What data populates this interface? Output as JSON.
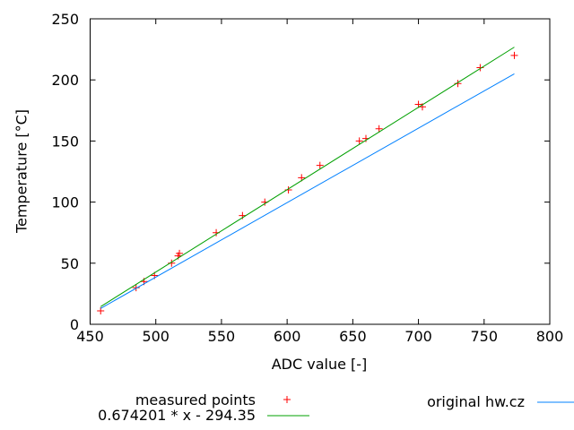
{
  "chart_data": {
    "type": "scatter",
    "title": "",
    "xlabel": "ADC value [-]",
    "ylabel": "Temperature [°C]",
    "xlim": [
      450,
      800
    ],
    "ylim": [
      0,
      250
    ],
    "xticks": [
      450,
      500,
      550,
      600,
      650,
      700,
      750,
      800
    ],
    "yticks": [
      0,
      50,
      100,
      150,
      200,
      250
    ],
    "grid": false,
    "legend_position": "below-plot",
    "axis_color": "#000000",
    "text_color": "#000000",
    "background_color": "#ffffff",
    "series": [
      {
        "name": "measured points",
        "type": "points",
        "marker": "plus",
        "color": "#ff0000",
        "points": [
          [
            458,
            11
          ],
          [
            485,
            30
          ],
          [
            491,
            35
          ],
          [
            499,
            40
          ],
          [
            512,
            50
          ],
          [
            517,
            56
          ],
          [
            518,
            58
          ],
          [
            546,
            75
          ],
          [
            566,
            89
          ],
          [
            583,
            100
          ],
          [
            601,
            110
          ],
          [
            611,
            120
          ],
          [
            625,
            130
          ],
          [
            655,
            150
          ],
          [
            660,
            152
          ],
          [
            670,
            160
          ],
          [
            700,
            180
          ],
          [
            703,
            178
          ],
          [
            730,
            197
          ],
          [
            747,
            210
          ],
          [
            773,
            220
          ]
        ]
      },
      {
        "name": "0.674201 * x - 294.35",
        "type": "line",
        "color": "#00a000",
        "slope": 0.674201,
        "intercept": -294.35,
        "x_range": [
          458,
          773
        ]
      },
      {
        "name": "original hw.cz",
        "type": "line",
        "color": "#0080ff",
        "points": [
          [
            458,
            13
          ],
          [
            773,
            205
          ]
        ]
      }
    ]
  }
}
